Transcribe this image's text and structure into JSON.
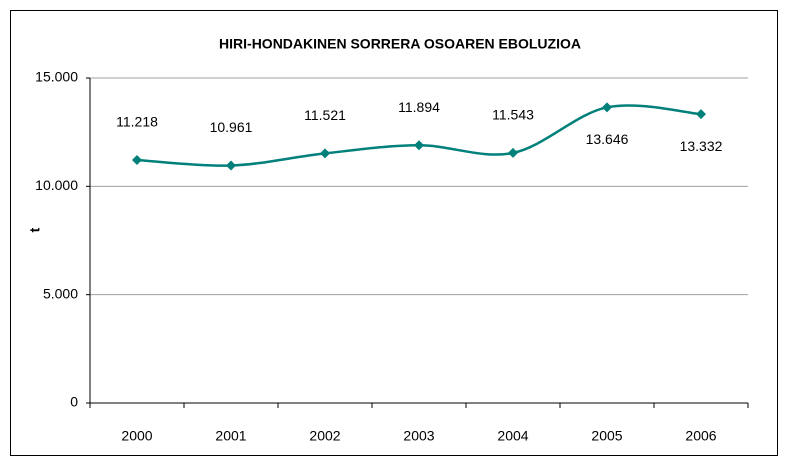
{
  "chart_data": {
    "type": "line",
    "title": "HIRI-HONDAKINEN SORRERA OSOAREN EBOLUZIOA",
    "y_label": "t",
    "categories": [
      "2000",
      "2001",
      "2002",
      "2003",
      "2004",
      "2005",
      "2006"
    ],
    "values": [
      11218,
      10961,
      11521,
      11894,
      11543,
      13646,
      13332
    ],
    "value_labels": [
      "11.218",
      "10.961",
      "11.521",
      "11.894",
      "11.543",
      "13.646",
      "13.332"
    ],
    "color": "#00807a",
    "ylim": [
      0,
      15000
    ],
    "yticks": [
      0,
      {
        "value": 5000,
        "label": "5.000"
      },
      {
        "value": 10000,
        "label": "10.000"
      },
      {
        "value": 15000,
        "label": "15.000"
      }
    ],
    "grid": true
  }
}
